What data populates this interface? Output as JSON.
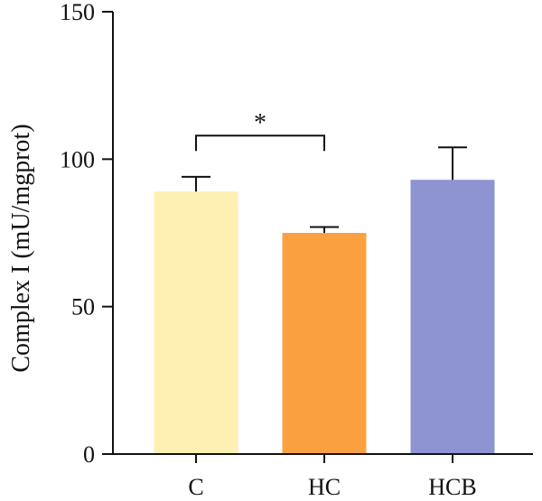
{
  "chart_data": {
    "type": "bar",
    "title": "",
    "xlabel": "",
    "ylabel": "Complex I (mU/mgprot)",
    "ylim": [
      0,
      150
    ],
    "yticks": [
      0,
      50,
      100,
      150
    ],
    "categories": [
      "C",
      "HC",
      "HCB"
    ],
    "values": [
      89,
      75,
      93
    ],
    "error_upper": [
      94,
      77,
      104
    ],
    "colors": [
      "#fdf0b2",
      "#fba040",
      "#8e94d1"
    ],
    "grid": false,
    "legend": "none",
    "significance": [
      {
        "from": 0,
        "to": 1,
        "label": "*",
        "level": 108
      }
    ]
  }
}
